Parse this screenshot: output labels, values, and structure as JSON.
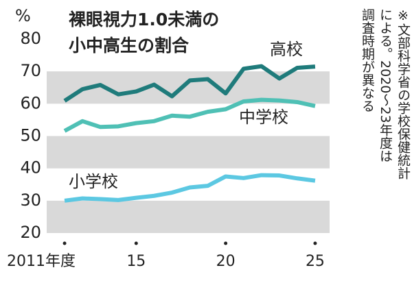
{
  "chart_data": {
    "type": "line",
    "title": [
      "裸眼視力1.0未満の",
      "小中高生の割合"
    ],
    "y_unit": "%",
    "note": [
      "※文部科学省の学校保健統計",
      "による。2020～23年度は",
      "調査時期が異なる"
    ],
    "x": [
      2011,
      2012,
      2013,
      2014,
      2015,
      2016,
      2017,
      2018,
      2019,
      2020,
      2021,
      2022,
      2023,
      2024,
      2025
    ],
    "series": [
      {
        "name": "高校",
        "color": "#1f7b7b",
        "values": [
          60.9,
          64.5,
          65.8,
          62.9,
          63.8,
          65.9,
          62.3,
          67.2,
          67.6,
          63.2,
          70.8,
          71.6,
          67.8,
          71.1,
          71.5
        ]
      },
      {
        "name": "中学校",
        "color": "#4fc0b5",
        "values": [
          51.6,
          54.6,
          52.8,
          53.0,
          54.0,
          54.6,
          56.3,
          56.0,
          57.5,
          58.3,
          60.7,
          61.2,
          61.0,
          60.5,
          59.3
        ]
      },
      {
        "name": "小学校",
        "color": "#5cc8e2",
        "values": [
          30.0,
          30.7,
          30.5,
          30.2,
          30.9,
          31.5,
          32.5,
          34.1,
          34.6,
          37.5,
          37.0,
          37.9,
          37.8,
          36.9,
          36.2
        ]
      }
    ],
    "xlim": [
      2010,
      2026
    ],
    "xticks": [
      {
        "value": 2011,
        "label": "2011年度"
      },
      {
        "value": 2015,
        "label": "15"
      },
      {
        "value": 2020,
        "label": "20"
      },
      {
        "value": 2025,
        "label": "25"
      }
    ],
    "ylim": [
      20,
      80
    ],
    "yticks": [
      20,
      30,
      40,
      50,
      60,
      70,
      80
    ],
    "bands": true
  }
}
